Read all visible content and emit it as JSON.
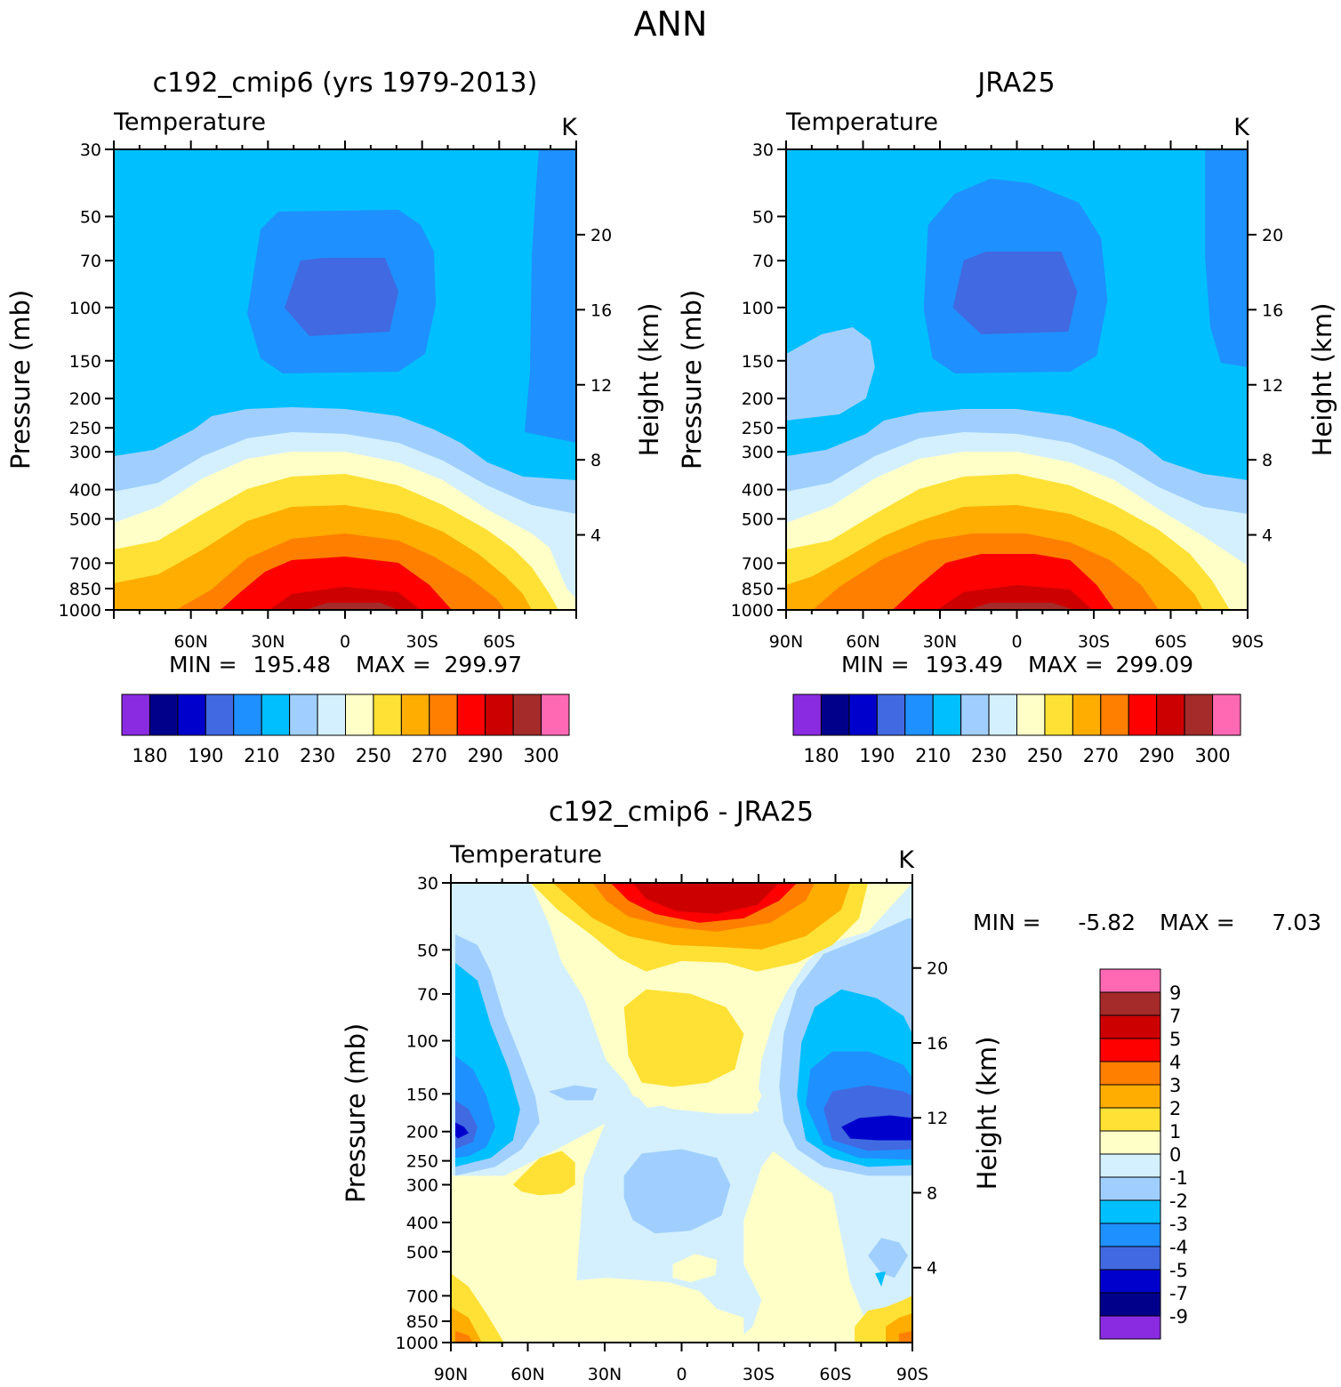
{
  "suptitle": "ANN",
  "colors": {
    "t_levels": [
      "#8a2be2",
      "#00008b",
      "#0000cd",
      "#4169e1",
      "#1e90ff",
      "#00bfff",
      "#a0cfff",
      "#d4f0ff",
      "#ffffc8",
      "#ffe135",
      "#ffad00",
      "#ff7f00",
      "#ff0000",
      "#cd0000",
      "#a52a2a",
      "#ff69b4"
    ],
    "d_levels": [
      "#8a2be2",
      "#00008b",
      "#0000cd",
      "#4169e1",
      "#1e90ff",
      "#00bfff",
      "#a0cfff",
      "#d4f0ff",
      "#ffffc8",
      "#ffe135",
      "#ffad00",
      "#ff7f00",
      "#ff0000",
      "#cd0000",
      "#a52a2a",
      "#ff69b4"
    ]
  },
  "chart_data": [
    {
      "type": "heatmap",
      "id": "model",
      "title": "c192_cmip6 (yrs 1979-2013)",
      "left_label": "Temperature",
      "right_label": "K",
      "xlabel": "",
      "ylabel": "Pressure (mb)",
      "y2label": "Height (km)",
      "x_ticks": [
        "60N",
        "30N",
        "0",
        "30S",
        "60S"
      ],
      "y_ticks": [
        "30",
        "50",
        "70",
        "100",
        "150",
        "200",
        "250",
        "300",
        "400",
        "500",
        "700",
        "850",
        "1000"
      ],
      "y2_ticks": [
        "20",
        "16",
        "12",
        "8",
        "4"
      ],
      "stats": {
        "min_label": "MIN =",
        "min": "195.48",
        "max_label": "MAX =",
        "max": "299.97"
      },
      "colorbar_labels": [
        "180",
        "190",
        "210",
        "230",
        "250",
        "270",
        "290",
        "300"
      ]
    },
    {
      "type": "heatmap",
      "id": "obs",
      "title": "JRA25",
      "left_label": "Temperature",
      "right_label": "K",
      "xlabel": "",
      "ylabel": "Pressure (mb)",
      "y2label": "Height (km)",
      "x_ticks": [
        "90N",
        "60N",
        "30N",
        "0",
        "30S",
        "60S",
        "90S"
      ],
      "y_ticks": [
        "30",
        "50",
        "70",
        "100",
        "150",
        "200",
        "250",
        "300",
        "400",
        "500",
        "700",
        "850",
        "1000"
      ],
      "y2_ticks": [
        "20",
        "16",
        "12",
        "8",
        "4"
      ],
      "stats": {
        "min_label": "MIN =",
        "min": "193.49",
        "max_label": "MAX =",
        "max": "299.09"
      },
      "colorbar_labels": [
        "180",
        "190",
        "210",
        "230",
        "250",
        "270",
        "290",
        "300"
      ]
    },
    {
      "type": "heatmap",
      "id": "diff",
      "title": "c192_cmip6 - JRA25",
      "left_label": "Temperature",
      "right_label": "K",
      "xlabel": "",
      "ylabel": "Pressure (mb)",
      "y2label": "Height (km)",
      "x_ticks": [
        "90N",
        "60N",
        "30N",
        "0",
        "30S",
        "60S",
        "90S"
      ],
      "y_ticks": [
        "30",
        "50",
        "70",
        "100",
        "150",
        "200",
        "250",
        "300",
        "400",
        "500",
        "700",
        "850",
        "1000"
      ],
      "y2_ticks": [
        "20",
        "16",
        "12",
        "8",
        "4"
      ],
      "stats": {
        "min_label": "MIN =",
        "min": "-5.82",
        "max_label": "MAX =",
        "max": "7.03"
      },
      "colorbar_labels": [
        "9",
        "7",
        "5",
        "4",
        "3",
        "2",
        "1",
        "0",
        "-1",
        "-2",
        "-3",
        "-4",
        "-5",
        "-7",
        "-9"
      ]
    }
  ]
}
